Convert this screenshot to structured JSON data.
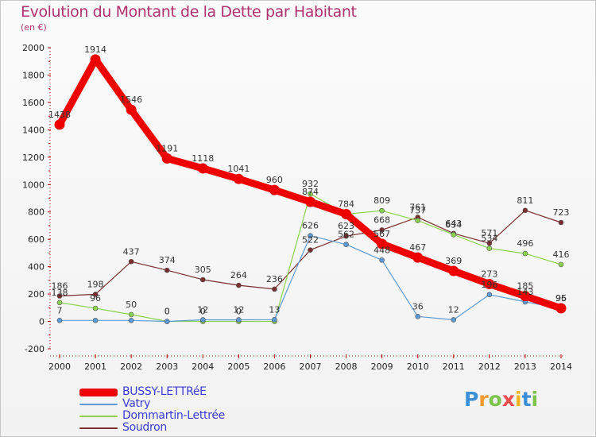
{
  "header": {
    "title": "Evolution du Montant de la Dette par Habitant",
    "unit": "(en €)"
  },
  "chart_data": {
    "type": "line",
    "x": [
      "2000",
      "2001",
      "2002",
      "2003",
      "2004",
      "2005",
      "2006",
      "2007",
      "2008",
      "2009",
      "2010",
      "2011",
      "2012",
      "2013",
      "2014"
    ],
    "ylim": [
      -200,
      2000
    ],
    "yticks": [
      "-200",
      "0",
      "200",
      "400",
      "600",
      "800",
      "1000",
      "1200",
      "1400",
      "1600",
      "1800",
      "2000"
    ],
    "ytick_values": [
      -200,
      0,
      200,
      400,
      600,
      800,
      1000,
      1200,
      1400,
      1600,
      1800,
      2000
    ],
    "series": [
      {
        "name": "BUSSY-LETTRéE",
        "color": "#ee0000",
        "values": [
          1438,
          1914,
          1546,
          1191,
          1118,
          1041,
          960,
          874,
          784,
          567,
          467,
          369,
          273,
          185,
          96
        ],
        "labels": [
          "1438",
          "1914",
          "1546",
          "1191",
          "1118",
          "1041",
          "960",
          "874",
          "784",
          "567",
          "467",
          "369",
          "273",
          "185",
          "96"
        ]
      },
      {
        "name": "Vatry",
        "color": "#5b9bd5",
        "values": [
          7,
          7,
          7,
          0,
          12,
          12,
          13,
          626,
          562,
          448,
          36,
          12,
          196,
          143,
          95
        ],
        "labels": [
          "7",
          "",
          "",
          "0",
          "12",
          "12",
          "13",
          "626",
          "562",
          "448",
          "36",
          "12",
          "196",
          "143",
          "95"
        ]
      },
      {
        "name": "Dommartin-Lettrée",
        "color": "#8bd34f",
        "values": [
          138,
          96,
          50,
          0,
          0,
          0,
          0,
          932,
          784,
          809,
          737,
          634,
          534,
          496,
          416
        ],
        "labels": [
          "138",
          "96",
          "50",
          "0",
          "0",
          "0",
          "",
          "932",
          "",
          "809",
          "737",
          "634",
          "534",
          "496",
          "416"
        ]
      },
      {
        "name": "Soudron",
        "color": "#7a2e2e",
        "values": [
          186,
          198,
          437,
          374,
          305,
          264,
          236,
          522,
          623,
          668,
          761,
          643,
          571,
          811,
          723
        ],
        "labels": [
          "186",
          "198",
          "437",
          "374",
          "305",
          "264",
          "236",
          "522",
          "623",
          "668",
          "761",
          "643",
          "571",
          "811",
          "723"
        ]
      }
    ],
    "grid": false,
    "legend_position": "bottom-left"
  },
  "logo": {
    "letters": [
      "P",
      "r",
      "o",
      "x",
      "i",
      "t",
      "i"
    ],
    "colors": [
      "#3a8fd6",
      "#f29a2e",
      "#7cc34a",
      "#e94e4e",
      "#f2b51f",
      "#3a8fd6",
      "#7cc34a"
    ]
  }
}
